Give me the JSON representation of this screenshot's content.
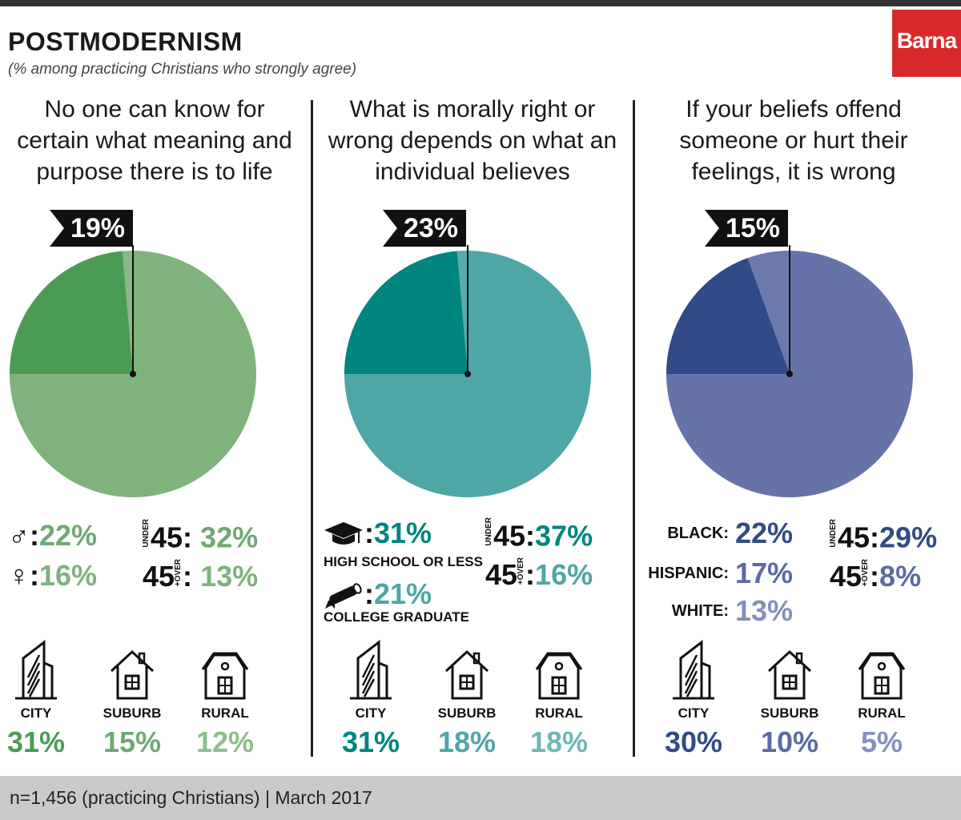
{
  "header": {
    "title": "POSTMODERNISM",
    "subtitle": "(% among practicing Christians who strongly agree)",
    "logo": "Barna"
  },
  "footer": {
    "note": "n=1,456 (practicing Christians) | March 2017"
  },
  "colors": {
    "green_light": "#7fb27d",
    "green_dark": "#4b9b55",
    "green_mid": "#6fa873",
    "teal_light": "#4ea6a5",
    "teal_dark": "#00857f",
    "blue_light": "#6673a8",
    "blue_dark": "#324a87",
    "blue_mid": "#5b6aa2"
  },
  "chart_data": [
    {
      "type": "pie",
      "title": "No one can know for certain what meaning and purpose there is to life",
      "title_lines": [
        "No one can know for",
        "certain what meaning and",
        "purpose there is to life"
      ],
      "value_pct": 19,
      "flag_label": "19%",
      "breakdowns": {
        "male": "22%",
        "female": "16%",
        "under45_prefix": "UNDER",
        "under45_label": "45:",
        "under45": "32%",
        "over45_label": "45",
        "over45_suffix": "+OVER",
        "over45": "13%"
      },
      "community": [
        {
          "label": "CITY",
          "value": "31%"
        },
        {
          "label": "SUBURB",
          "value": "15%"
        },
        {
          "label": "RURAL",
          "value": "12%"
        }
      ]
    },
    {
      "type": "pie",
      "title": "What is morally right or wrong depends on what an individual believes",
      "title_lines": [
        "What is morally right or",
        "wrong depends on what an",
        "individual believes"
      ],
      "value_pct": 23,
      "flag_label": "23%",
      "breakdowns": {
        "hs_value": "31%",
        "hs_label": "HIGH SCHOOL OR LESS",
        "college_value": "21%",
        "college_label": "COLLEGE GRADUATE",
        "under45_prefix": "UNDER",
        "under45_label": "45:",
        "under45": "37%",
        "over45_label": "45",
        "over45_suffix": "+OVER",
        "over45": "16%"
      },
      "community": [
        {
          "label": "CITY",
          "value": "31%"
        },
        {
          "label": "SUBURB",
          "value": "18%"
        },
        {
          "label": "RURAL",
          "value": "18%"
        }
      ]
    },
    {
      "type": "pie",
      "title": "If your beliefs offend someone or hurt their feelings, it is wrong",
      "title_lines": [
        "If your beliefs offend",
        "someone or hurt their",
        "feelings, it is wrong"
      ],
      "value_pct": 15,
      "flag_label": "15%",
      "breakdowns": {
        "black_label": "BLACK:",
        "black": "22%",
        "hispanic_label": "HISPANIC:",
        "hispanic": "17%",
        "white_label": "WHITE:",
        "white": "13%",
        "under45_prefix": "UNDER",
        "under45_label": "45:",
        "under45": "29%",
        "over45_label": "45",
        "over45_suffix": "+OVER",
        "over45": "8%"
      },
      "community": [
        {
          "label": "CITY",
          "value": "30%"
        },
        {
          "label": "SUBURB",
          "value": "10%"
        },
        {
          "label": "RURAL",
          "value": "5%"
        }
      ]
    }
  ]
}
